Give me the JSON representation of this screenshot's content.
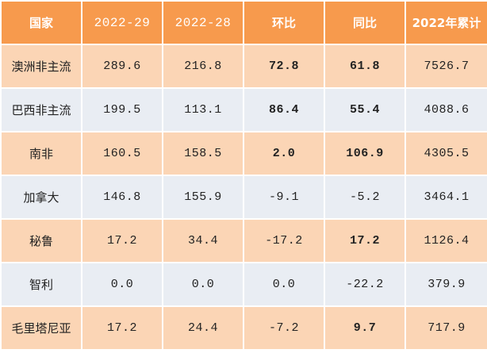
{
  "table": {
    "headers": [
      "国家",
      "2022-29",
      "2022-28",
      "环比",
      "同比",
      "2022年累计"
    ],
    "rows": [
      {
        "country": "澳洲非主流",
        "w29": "289.6",
        "w28": "216.8",
        "wow": "72.8",
        "yoy": "61.8",
        "ytd": "7526.7"
      },
      {
        "country": "巴西非主流",
        "w29": "199.5",
        "w28": "113.1",
        "wow": "86.4",
        "yoy": "55.4",
        "ytd": "4088.6"
      },
      {
        "country": "南非",
        "w29": "160.5",
        "w28": "158.5",
        "wow": "2.0",
        "yoy": "106.9",
        "ytd": "4305.5"
      },
      {
        "country": "加拿大",
        "w29": "146.8",
        "w28": "155.9",
        "wow": "-9.1",
        "yoy": "-5.2",
        "ytd": "3464.1"
      },
      {
        "country": "秘鲁",
        "w29": "17.2",
        "w28": "34.4",
        "wow": "-17.2",
        "yoy": "17.2",
        "ytd": "1126.4"
      },
      {
        "country": "智利",
        "w29": "0.0",
        "w28": "0.0",
        "wow": "0.0",
        "yoy": "-22.2",
        "ytd": "379.9"
      },
      {
        "country": "毛里塔尼亚",
        "w29": "17.2",
        "w28": "24.4",
        "wow": "-7.2",
        "yoy": "9.7",
        "ytd": "717.9"
      }
    ]
  },
  "colors": {
    "header_bg": "#f79a4d",
    "row_odd_bg": "#fbd5b5",
    "row_even_bg": "#e9edf3",
    "positive": "#e30000",
    "negative": "#1ea044"
  }
}
